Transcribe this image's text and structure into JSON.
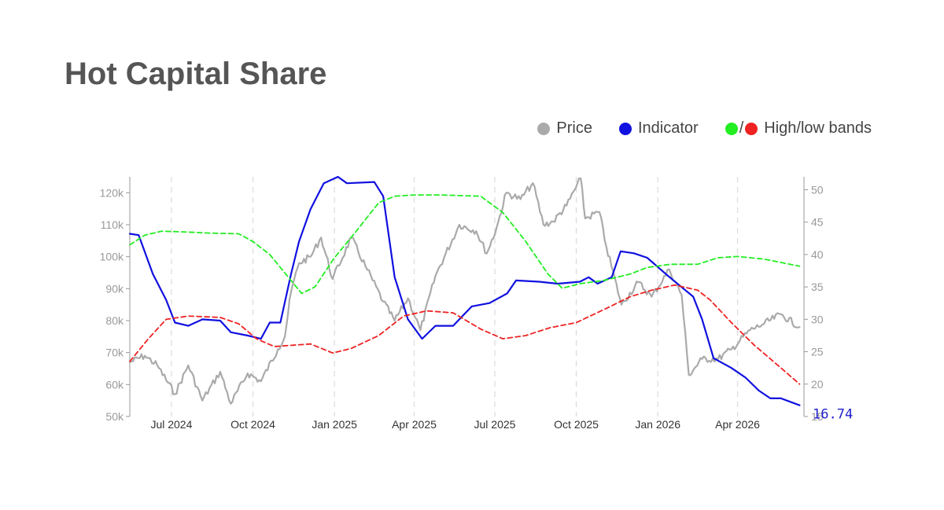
{
  "title": "Hot Capital Share",
  "legend": [
    {
      "label": "Price",
      "colors": [
        "#aaaaaa"
      ]
    },
    {
      "label": "Indicator",
      "colors": [
        "#1010e0"
      ]
    },
    {
      "label": "High/low bands",
      "colors": [
        "#22ee22",
        "#ee2222"
      ],
      "separator": "/"
    }
  ],
  "colors": {
    "price": "#aaaaaa",
    "indicator": "#1010e0",
    "high_band": "#22ee22",
    "low_band": "#ee2222",
    "grid": "#dddddd"
  },
  "chart_data": {
    "type": "line",
    "x_range": [
      "2024-05-15",
      "2026-06-15"
    ],
    "x_ticks": [
      {
        "date": "2024-07-01",
        "label": "Jul 2024"
      },
      {
        "date": "2024-10-01",
        "label": "Oct 2024"
      },
      {
        "date": "2025-01-01",
        "label": "Jan 2025"
      },
      {
        "date": "2025-04-01",
        "label": "Apr 2025"
      },
      {
        "date": "2025-07-01",
        "label": "Jul 2025"
      },
      {
        "date": "2025-10-01",
        "label": "Oct 2025"
      },
      {
        "date": "2026-01-01",
        "label": "Jan 2026"
      },
      {
        "date": "2026-04-01",
        "label": "Apr 2026"
      }
    ],
    "y_left": {
      "range": [
        50000,
        125000
      ],
      "ticks": [
        50000,
        60000,
        70000,
        80000,
        90000,
        100000,
        110000,
        120000
      ],
      "tick_labels": [
        "50k",
        "60k",
        "70k",
        "80k",
        "90k",
        "100k",
        "110k",
        "120k"
      ]
    },
    "y_right": {
      "range": [
        15,
        52
      ],
      "ticks": [
        15,
        20,
        25,
        30,
        35,
        40,
        45,
        50
      ],
      "tick_labels": [
        "15",
        "20",
        "25",
        "30",
        "35",
        "40",
        "45",
        "50"
      ]
    },
    "grid": "vertical dashed at x ticks",
    "last_value_label": "16.74",
    "series": [
      {
        "name": "Price",
        "axis": "left",
        "style": "solid",
        "points": [
          [
            "2024-05-15",
            67000
          ],
          [
            "2024-06-01",
            69000
          ],
          [
            "2024-06-15",
            66000
          ],
          [
            "2024-07-05",
            57000
          ],
          [
            "2024-07-20",
            66000
          ],
          [
            "2024-08-05",
            55000
          ],
          [
            "2024-08-25",
            64000
          ],
          [
            "2024-09-06",
            54000
          ],
          [
            "2024-09-25",
            63500
          ],
          [
            "2024-10-10",
            61000
          ],
          [
            "2024-10-29",
            71000
          ],
          [
            "2024-11-06",
            75000
          ],
          [
            "2024-11-13",
            89000
          ],
          [
            "2024-11-22",
            98000
          ],
          [
            "2024-12-05",
            100000
          ],
          [
            "2024-12-17",
            106000
          ],
          [
            "2024-12-30",
            93000
          ],
          [
            "2025-01-20",
            106000
          ],
          [
            "2025-02-05",
            97000
          ],
          [
            "2025-02-25",
            86000
          ],
          [
            "2025-03-10",
            80000
          ],
          [
            "2025-03-25",
            87000
          ],
          [
            "2025-04-08",
            77000
          ],
          [
            "2025-04-25",
            94000
          ],
          [
            "2025-05-22",
            110000
          ],
          [
            "2025-06-10",
            108000
          ],
          [
            "2025-06-22",
            101000
          ],
          [
            "2025-07-03",
            109000
          ],
          [
            "2025-07-14",
            120000
          ],
          [
            "2025-07-30",
            118000
          ],
          [
            "2025-08-13",
            123000
          ],
          [
            "2025-08-25",
            110000
          ],
          [
            "2025-09-05",
            111000
          ],
          [
            "2025-09-20",
            116000
          ],
          [
            "2025-10-06",
            124500
          ],
          [
            "2025-10-11",
            112000
          ],
          [
            "2025-10-27",
            114000
          ],
          [
            "2025-11-04",
            103000
          ],
          [
            "2025-11-21",
            85000
          ],
          [
            "2025-12-10",
            92000
          ],
          [
            "2025-12-25",
            87500
          ],
          [
            "2026-01-14",
            96000
          ],
          [
            "2026-01-28",
            88000
          ],
          [
            "2026-02-05",
            63000
          ],
          [
            "2026-02-20",
            68000
          ],
          [
            "2026-03-10",
            68000
          ],
          [
            "2026-03-25",
            71000
          ],
          [
            "2026-04-15",
            77000
          ],
          [
            "2026-05-01",
            79000
          ],
          [
            "2026-05-20",
            82000
          ],
          [
            "2026-06-10",
            78000
          ]
        ]
      },
      {
        "name": "Indicator",
        "axis": "right",
        "style": "solid",
        "points": [
          [
            "2024-05-15",
            43.2
          ],
          [
            "2024-05-25",
            43.0
          ],
          [
            "2024-06-10",
            37.0
          ],
          [
            "2024-06-25",
            33.0
          ],
          [
            "2024-07-05",
            29.5
          ],
          [
            "2024-07-20",
            29.0
          ],
          [
            "2024-08-05",
            30.0
          ],
          [
            "2024-08-25",
            29.8
          ],
          [
            "2024-09-06",
            28.0
          ],
          [
            "2024-09-25",
            27.5
          ],
          [
            "2024-10-10",
            27.0
          ],
          [
            "2024-10-20",
            29.5
          ],
          [
            "2024-11-01",
            29.5
          ],
          [
            "2024-11-13",
            37.0
          ],
          [
            "2024-11-22",
            42.0
          ],
          [
            "2024-12-05",
            47.0
          ],
          [
            "2024-12-20",
            51.0
          ],
          [
            "2025-01-05",
            52.0
          ],
          [
            "2025-01-15",
            51.0
          ],
          [
            "2025-02-15",
            51.2
          ],
          [
            "2025-02-25",
            49.0
          ],
          [
            "2025-03-10",
            36.5
          ],
          [
            "2025-03-25",
            30.0
          ],
          [
            "2025-04-10",
            27.0
          ],
          [
            "2025-04-25",
            29.0
          ],
          [
            "2025-05-15",
            29.0
          ],
          [
            "2025-06-05",
            32.0
          ],
          [
            "2025-06-25",
            32.5
          ],
          [
            "2025-07-15",
            34.0
          ],
          [
            "2025-07-25",
            36.0
          ],
          [
            "2025-08-20",
            35.8
          ],
          [
            "2025-09-10",
            35.5
          ],
          [
            "2025-10-05",
            35.8
          ],
          [
            "2025-10-15",
            36.5
          ],
          [
            "2025-10-25",
            35.5
          ],
          [
            "2025-11-10",
            36.5
          ],
          [
            "2025-11-20",
            40.5
          ],
          [
            "2025-12-05",
            40.2
          ],
          [
            "2025-12-20",
            39.5
          ],
          [
            "2026-01-10",
            37.0
          ],
          [
            "2026-01-25",
            35.3
          ],
          [
            "2026-02-10",
            33.5
          ],
          [
            "2026-02-20",
            30.0
          ],
          [
            "2026-03-05",
            24.0
          ],
          [
            "2026-03-25",
            22.5
          ],
          [
            "2026-04-10",
            21.0
          ],
          [
            "2026-04-25",
            19.0
          ],
          [
            "2026-05-08",
            17.8
          ],
          [
            "2026-05-20",
            17.8
          ],
          [
            "2026-06-10",
            16.74
          ]
        ]
      },
      {
        "name": "High band",
        "axis": "right",
        "style": "dashed",
        "points": [
          [
            "2024-05-15",
            41.5
          ],
          [
            "2024-06-01",
            43.0
          ],
          [
            "2024-06-20",
            43.6
          ],
          [
            "2024-07-15",
            43.5
          ],
          [
            "2024-08-15",
            43.3
          ],
          [
            "2024-09-15",
            43.2
          ],
          [
            "2024-10-01",
            42.0
          ],
          [
            "2024-10-20",
            40.0
          ],
          [
            "2024-11-10",
            36.5
          ],
          [
            "2024-11-25",
            34.0
          ],
          [
            "2024-12-10",
            35.0
          ],
          [
            "2025-01-01",
            39.5
          ],
          [
            "2025-01-25",
            43.5
          ],
          [
            "2025-02-20",
            48.0
          ],
          [
            "2025-03-10",
            49.0
          ],
          [
            "2025-04-01",
            49.2
          ],
          [
            "2025-05-01",
            49.2
          ],
          [
            "2025-06-15",
            49.0
          ],
          [
            "2025-07-10",
            46.5
          ],
          [
            "2025-08-05",
            42.0
          ],
          [
            "2025-08-30",
            37.0
          ],
          [
            "2025-09-15",
            34.8
          ],
          [
            "2025-10-05",
            35.5
          ],
          [
            "2025-11-01",
            36.0
          ],
          [
            "2025-12-01",
            37.0
          ],
          [
            "2025-12-20",
            38.0
          ],
          [
            "2026-01-15",
            38.5
          ],
          [
            "2026-02-15",
            38.5
          ],
          [
            "2026-03-10",
            39.5
          ],
          [
            "2026-04-01",
            39.7
          ],
          [
            "2026-05-01",
            39.3
          ],
          [
            "2026-06-10",
            38.2
          ]
        ]
      },
      {
        "name": "Low band",
        "axis": "right",
        "style": "dashed",
        "points": [
          [
            "2024-05-15",
            23.5
          ],
          [
            "2024-06-05",
            27.0
          ],
          [
            "2024-06-25",
            30.0
          ],
          [
            "2024-07-20",
            30.5
          ],
          [
            "2024-08-25",
            30.3
          ],
          [
            "2024-09-15",
            29.3
          ],
          [
            "2024-10-05",
            27.0
          ],
          [
            "2024-10-25",
            25.8
          ],
          [
            "2024-11-15",
            26.0
          ],
          [
            "2024-12-05",
            26.2
          ],
          [
            "2024-12-30",
            24.8
          ],
          [
            "2025-01-20",
            25.5
          ],
          [
            "2025-02-20",
            27.5
          ],
          [
            "2025-03-20",
            30.5
          ],
          [
            "2025-04-15",
            31.3
          ],
          [
            "2025-05-15",
            31.0
          ],
          [
            "2025-06-15",
            28.5
          ],
          [
            "2025-07-10",
            27.0
          ],
          [
            "2025-08-05",
            27.5
          ],
          [
            "2025-09-01",
            28.7
          ],
          [
            "2025-10-01",
            29.5
          ],
          [
            "2025-11-01",
            31.5
          ],
          [
            "2025-12-01",
            33.5
          ],
          [
            "2025-12-25",
            34.5
          ],
          [
            "2026-01-20",
            35.3
          ],
          [
            "2026-02-15",
            34.5
          ],
          [
            "2026-03-01",
            33.0
          ],
          [
            "2026-03-25",
            29.5
          ],
          [
            "2026-04-20",
            26.0
          ],
          [
            "2026-05-20",
            22.5
          ],
          [
            "2026-06-10",
            20.0
          ]
        ]
      }
    ]
  }
}
